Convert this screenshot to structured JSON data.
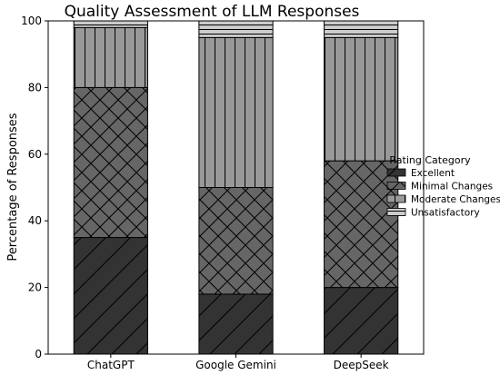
{
  "chart_data": {
    "type": "bar",
    "stacked": true,
    "title": "Quality Assessment of LLM Responses",
    "xlabel": "",
    "ylabel": "Percentage of Responses",
    "ylim": [
      0,
      100
    ],
    "yticks": [
      0,
      20,
      40,
      60,
      80,
      100
    ],
    "grid": false,
    "legend_title": "Rating Category",
    "legend_position": "right",
    "categories": [
      "ChatGPT",
      "Google Gemini",
      "DeepSeek"
    ],
    "series": [
      {
        "name": "Excellent",
        "values": [
          35,
          18,
          20
        ],
        "color": "#333333",
        "hatch": "diagonal"
      },
      {
        "name": "Minimal Changes",
        "values": [
          45,
          32,
          38
        ],
        "color": "#666666",
        "hatch": "crosshatch"
      },
      {
        "name": "Moderate Changes",
        "values": [
          18,
          45,
          37
        ],
        "color": "#999999",
        "hatch": "vertical"
      },
      {
        "name": "Unsatisfactory",
        "values": [
          2,
          5,
          5
        ],
        "color": "#cccccc",
        "hatch": "horizontal"
      }
    ]
  }
}
